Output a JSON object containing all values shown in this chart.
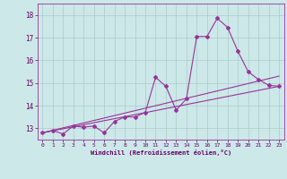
{
  "title": "",
  "xlabel": "Windchill (Refroidissement éolien,°C)",
  "ylabel": "",
  "background_color": "#cce8e8",
  "grid_color": "#aacccc",
  "line_color": "#993399",
  "xlim": [
    -0.5,
    23.5
  ],
  "ylim": [
    12.5,
    18.5
  ],
  "yticks": [
    13,
    14,
    15,
    16,
    17,
    18
  ],
  "xticks": [
    0,
    1,
    2,
    3,
    4,
    5,
    6,
    7,
    8,
    9,
    10,
    11,
    12,
    13,
    14,
    15,
    16,
    17,
    18,
    19,
    20,
    21,
    22,
    23
  ],
  "series1_x": [
    0,
    1,
    2,
    3,
    4,
    5,
    6,
    7,
    8,
    9,
    10,
    11,
    12,
    13,
    14,
    15,
    16,
    17,
    18,
    19,
    20,
    21,
    22,
    23
  ],
  "series1_y": [
    12.8,
    12.9,
    12.75,
    13.1,
    13.05,
    13.1,
    12.8,
    13.3,
    13.5,
    13.5,
    13.7,
    15.25,
    14.85,
    13.8,
    14.3,
    17.05,
    17.05,
    17.85,
    17.45,
    16.4,
    15.5,
    15.15,
    14.9,
    14.85
  ],
  "series2_x": [
    0,
    23
  ],
  "series2_y": [
    12.8,
    14.85
  ],
  "series3_x": [
    0,
    23
  ],
  "series3_y": [
    12.8,
    15.3
  ],
  "marker": "D",
  "markersize": 2.0,
  "linewidth": 0.8
}
